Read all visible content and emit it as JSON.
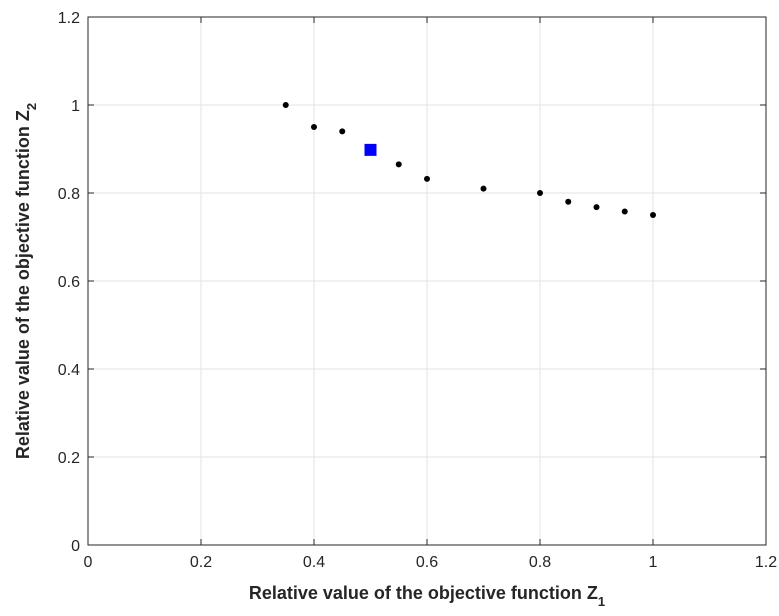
{
  "chart_data": {
    "type": "scatter",
    "title": "",
    "xlabel": {
      "text": "Relative value of the objective function Z",
      "subscript": "1"
    },
    "ylabel": {
      "text": "Relative value of the objective function Z",
      "subscript": "2"
    },
    "xlim": [
      0,
      1.2
    ],
    "ylim": [
      0,
      1.2
    ],
    "xticks": [
      "0",
      "0.2",
      "0.4",
      "0.6",
      "0.8",
      "1",
      "1.2"
    ],
    "yticks": [
      "0",
      "0.2",
      "0.4",
      "0.6",
      "0.8",
      "1",
      "1.2"
    ],
    "grid": true,
    "series": [
      {
        "marker": "dot",
        "color": "#000000",
        "points": [
          [
            0.35,
            1.0
          ],
          [
            0.4,
            0.95
          ],
          [
            0.45,
            0.94
          ],
          [
            0.55,
            0.865
          ],
          [
            0.6,
            0.832
          ],
          [
            0.7,
            0.81
          ],
          [
            0.8,
            0.8
          ],
          [
            0.85,
            0.78
          ],
          [
            0.9,
            0.768
          ],
          [
            0.95,
            0.758
          ],
          [
            1.0,
            0.75
          ]
        ]
      },
      {
        "marker": "square",
        "color": "#0000ff",
        "points": [
          [
            0.5,
            0.898
          ]
        ]
      }
    ]
  }
}
